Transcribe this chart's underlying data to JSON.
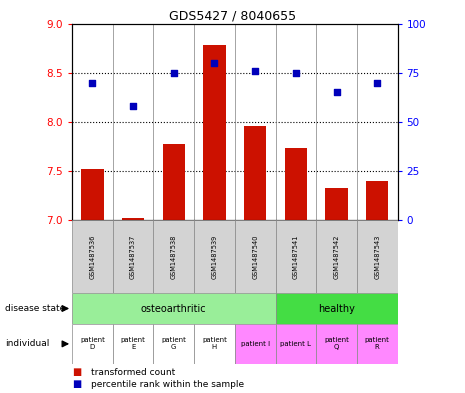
{
  "title": "GDS5427 / 8040655",
  "samples": [
    "GSM1487536",
    "GSM1487537",
    "GSM1487538",
    "GSM1487539",
    "GSM1487540",
    "GSM1487541",
    "GSM1487542",
    "GSM1487543"
  ],
  "transformed_counts": [
    7.52,
    7.02,
    7.77,
    8.78,
    7.96,
    7.73,
    7.33,
    7.4
  ],
  "percentile_ranks": [
    70,
    58,
    75,
    80,
    76,
    75,
    65,
    70
  ],
  "ylim_left": [
    7.0,
    9.0
  ],
  "ylim_right": [
    0,
    100
  ],
  "yticks_left": [
    7.0,
    7.5,
    8.0,
    8.5,
    9.0
  ],
  "yticks_right": [
    0,
    25,
    50,
    75,
    100
  ],
  "disease_state_colors": {
    "osteoarthritic": "#99EE99",
    "healthy": "#44DD44"
  },
  "individuals": [
    "patient\nD",
    "patient\nE",
    "patient\nG",
    "patient\nH",
    "patient I",
    "patient L",
    "patient\nQ",
    "patient\nR"
  ],
  "individual_colors": [
    "#FFFFFF",
    "#FFFFFF",
    "#FFFFFF",
    "#FFFFFF",
    "#FF88FF",
    "#FF88FF",
    "#FF88FF",
    "#FF88FF"
  ],
  "bar_color": "#CC1100",
  "dot_color": "#0000BB",
  "label_red": "transformed count",
  "label_blue": "percentile rank within the sample",
  "grid_ticks": [
    7.5,
    8.0,
    8.5
  ],
  "osteo_count": 5,
  "healthy_count": 3
}
